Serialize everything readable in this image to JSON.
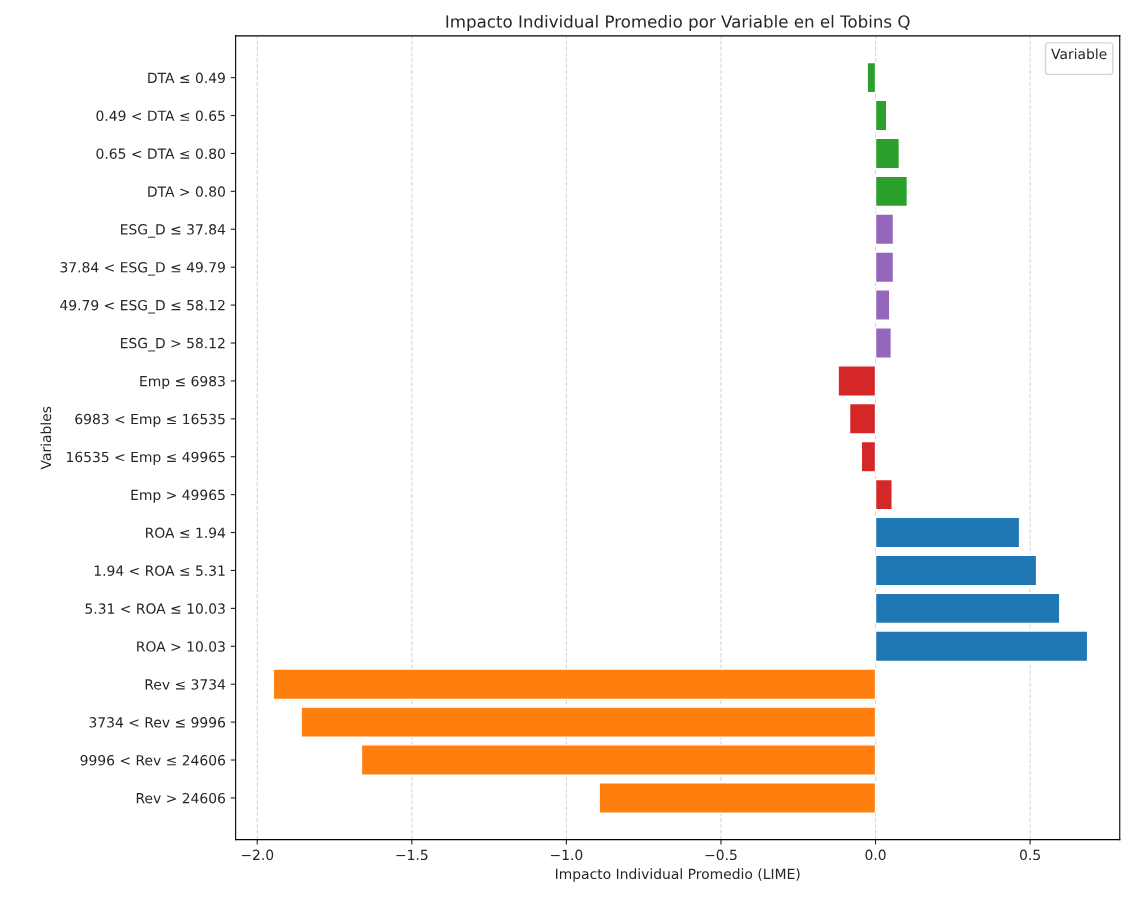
{
  "chart_data": {
    "type": "bar",
    "orientation": "horizontal",
    "title": "Impacto Individual Promedio por Variable en el Tobins Q",
    "xlabel": "Impacto Individual Promedio (LIME)",
    "ylabel": "Variables",
    "legend_title": "Variable",
    "categories": [
      "DTA ≤ 0.49",
      "0.49 < DTA ≤ 0.65",
      "0.65 < DTA ≤ 0.80",
      "DTA > 0.80",
      "ESG_D ≤ 37.84",
      "37.84 < ESG_D ≤ 49.79",
      "49.79 < ESG_D ≤ 58.12",
      "ESG_D > 58.12",
      "Emp ≤ 6983",
      "6983 < Emp ≤ 16535",
      "16535 < Emp ≤ 49965",
      "Emp > 49965",
      "ROA ≤ 1.94",
      "1.94 < ROA ≤ 5.31",
      "5.31 < ROA ≤ 10.03",
      "ROA > 10.03",
      "Rev ≤ 3734",
      "3734 < Rev ≤ 9996",
      "9996 < Rev ≤ 24606",
      "Rev > 24606"
    ],
    "values": [
      -0.027,
      0.036,
      0.077,
      0.103,
      0.058,
      0.058,
      0.046,
      0.051,
      -0.121,
      -0.084,
      -0.046,
      0.054,
      0.466,
      0.521,
      0.596,
      0.686,
      -1.948,
      -1.858,
      -1.663,
      -0.894
    ],
    "colors": [
      "#2ca02c",
      "#2ca02c",
      "#2ca02c",
      "#2ca02c",
      "#9467bd",
      "#9467bd",
      "#9467bd",
      "#9467bd",
      "#d62728",
      "#d62728",
      "#d62728",
      "#d62728",
      "#1f77b4",
      "#1f77b4",
      "#1f77b4",
      "#1f77b4",
      "#ff7f0e",
      "#ff7f0e",
      "#ff7f0e",
      "#ff7f0e"
    ],
    "xlim": [
      -2.07,
      0.79
    ],
    "xticks": [
      {
        "value": -2.0,
        "label": "−2.0"
      },
      {
        "value": -1.5,
        "label": "−1.5"
      },
      {
        "value": -1.0,
        "label": "−1.0"
      },
      {
        "value": -0.5,
        "label": "−0.5"
      },
      {
        "value": 0.0,
        "label": "0.0"
      },
      {
        "value": 0.5,
        "label": "0.5"
      }
    ],
    "grid": "x"
  }
}
